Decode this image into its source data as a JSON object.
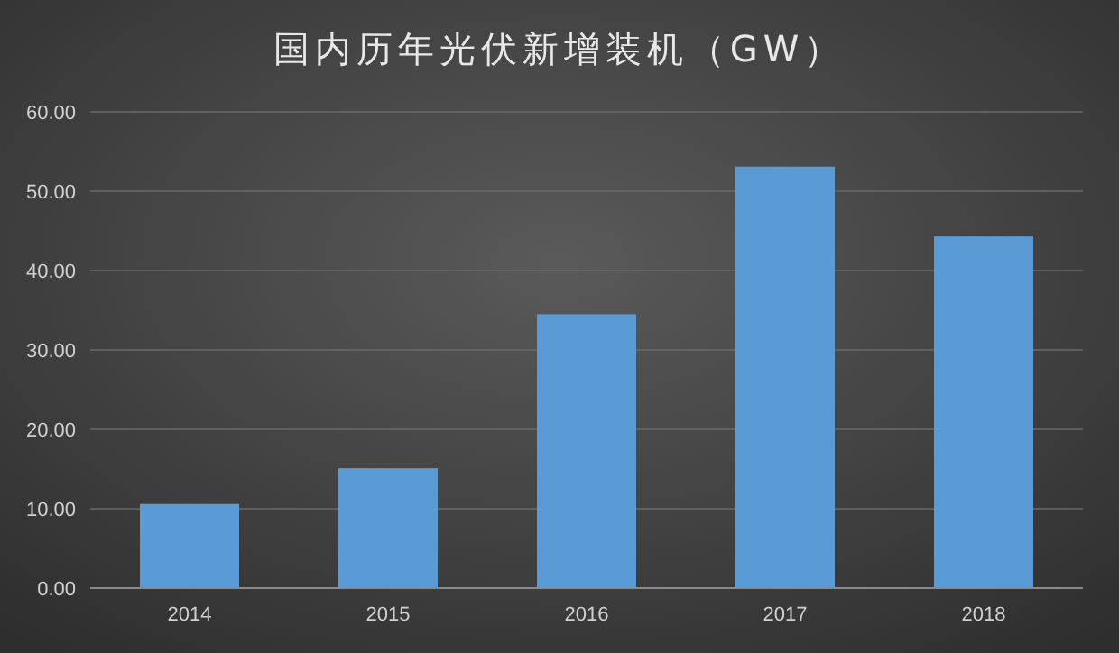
{
  "chart_data": {
    "type": "bar",
    "title": "国内历年光伏新增装机（GW）",
    "categories": [
      "2014",
      "2015",
      "2016",
      "2017",
      "2018"
    ],
    "values": [
      10.6,
      15.1,
      34.5,
      53.1,
      44.3
    ],
    "color": "#5b9bd5",
    "ylim": [
      0,
      60
    ],
    "yticks": [
      {
        "value": 0,
        "label": "0.00"
      },
      {
        "value": 10,
        "label": "10.00"
      },
      {
        "value": 20,
        "label": "20.00"
      },
      {
        "value": 30,
        "label": "30.00"
      },
      {
        "value": 40,
        "label": "40.00"
      },
      {
        "value": 50,
        "label": "50.00"
      },
      {
        "value": 60,
        "label": "60.00"
      }
    ],
    "grid": true
  }
}
